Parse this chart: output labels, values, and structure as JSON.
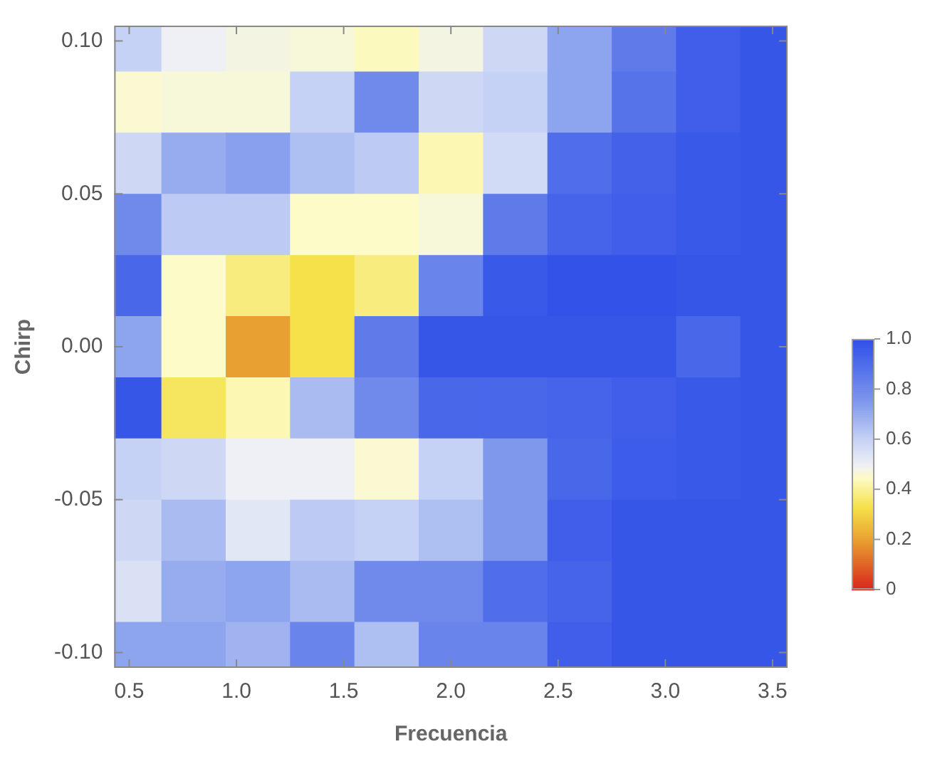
{
  "chart_data": {
    "type": "heatmap",
    "xlabel": "Frecuencia",
    "ylabel": "Chirp",
    "x": [
      0.5,
      0.8,
      1.1,
      1.4,
      1.7,
      2.0,
      2.3,
      2.6,
      2.9,
      3.2,
      3.5
    ],
    "y": [
      0.1,
      0.08,
      0.06,
      0.04,
      0.02,
      0,
      -0.02,
      -0.04,
      -0.06,
      -0.08,
      -0.1
    ],
    "cells": [
      [
        0.6,
        0.5,
        0.48,
        0.47,
        0.44,
        0.48,
        0.58,
        0.72,
        0.85,
        0.95,
        0.98
      ],
      [
        0.46,
        0.47,
        0.47,
        0.6,
        0.8,
        0.58,
        0.6,
        0.72,
        0.88,
        0.95,
        0.98
      ],
      [
        0.58,
        0.7,
        0.73,
        0.65,
        0.62,
        0.43,
        0.57,
        0.9,
        0.94,
        0.97,
        0.98
      ],
      [
        0.8,
        0.62,
        0.62,
        0.45,
        0.45,
        0.47,
        0.85,
        0.93,
        0.95,
        0.97,
        0.98
      ],
      [
        0.92,
        0.45,
        0.38,
        0.33,
        0.38,
        0.82,
        0.97,
        0.99,
        0.99,
        0.98,
        0.98
      ],
      [
        0.72,
        0.45,
        0.2,
        0.33,
        0.85,
        0.98,
        0.98,
        0.98,
        0.98,
        0.92,
        0.98
      ],
      [
        0.98,
        0.35,
        0.43,
        0.66,
        0.8,
        0.92,
        0.92,
        0.93,
        0.95,
        0.97,
        0.98
      ],
      [
        0.6,
        0.58,
        0.5,
        0.5,
        0.46,
        0.6,
        0.75,
        0.92,
        0.96,
        0.97,
        0.98
      ],
      [
        0.58,
        0.66,
        0.53,
        0.62,
        0.6,
        0.65,
        0.75,
        0.95,
        0.98,
        0.98,
        0.98
      ],
      [
        0.55,
        0.7,
        0.72,
        0.66,
        0.8,
        0.8,
        0.9,
        0.93,
        0.98,
        0.98,
        0.98
      ],
      [
        0.72,
        0.72,
        0.68,
        0.82,
        0.65,
        0.82,
        0.82,
        0.95,
        0.98,
        0.98,
        0.98
      ]
    ],
    "xlim": [
      0.43,
      3.57
    ],
    "xticks": [
      0.5,
      {
        "value": 1,
        "label": "1.0"
      },
      1.5,
      {
        "value": 2,
        "label": "2.0"
      },
      2.5,
      {
        "value": 3,
        "label": "3.0"
      },
      3.5
    ],
    "ylim": [
      -0.105,
      0.105
    ],
    "yticks": [
      {
        "value": -0.1,
        "label": "-0.10"
      },
      {
        "value": -0.05,
        "label": "-0.05"
      },
      {
        "value": 0,
        "label": "0.00"
      },
      {
        "value": 0.05,
        "label": "0.05"
      },
      {
        "value": 0.1,
        "label": "0.10"
      }
    ],
    "clim": [
      0,
      1
    ],
    "cticks": [
      {
        "value": 0,
        "label": "0"
      },
      0.2,
      0.4,
      0.6,
      0.8,
      {
        "value": 1,
        "label": "1.0"
      }
    ]
  }
}
